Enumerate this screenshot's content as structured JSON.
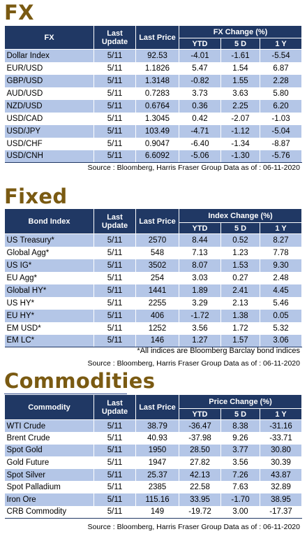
{
  "fx": {
    "title": "FX",
    "headers": {
      "name": "FX",
      "last_update": "Last Update",
      "last_price": "Last Price",
      "group": "FX Change (%)",
      "ytd": "YTD",
      "d5": "5 D",
      "y1": "1 Y"
    },
    "rows": [
      {
        "name": "Dollar Index",
        "update": "5/11",
        "price": "92.53",
        "ytd": "-4.01",
        "d5": "-1.61",
        "y1": "-5.54"
      },
      {
        "name": "EUR/USD",
        "update": "5/11",
        "price": "1.1826",
        "ytd": "5.47",
        "d5": "1.54",
        "y1": "6.87"
      },
      {
        "name": "GBP/USD",
        "update": "5/11",
        "price": "1.3148",
        "ytd": "-0.82",
        "d5": "1.55",
        "y1": "2.28"
      },
      {
        "name": "AUD/USD",
        "update": "5/11",
        "price": "0.7283",
        "ytd": "3.73",
        "d5": "3.63",
        "y1": "5.80"
      },
      {
        "name": "NZD/USD",
        "update": "5/11",
        "price": "0.6764",
        "ytd": "0.36",
        "d5": "2.25",
        "y1": "6.20"
      },
      {
        "name": "USD/CAD",
        "update": "5/11",
        "price": "1.3045",
        "ytd": "0.42",
        "d5": "-2.07",
        "y1": "-1.03"
      },
      {
        "name": "USD/JPY",
        "update": "5/11",
        "price": "103.49",
        "ytd": "-4.71",
        "d5": "-1.12",
        "y1": "-5.04"
      },
      {
        "name": "USD/CHF",
        "update": "5/11",
        "price": "0.9047",
        "ytd": "-6.40",
        "d5": "-1.34",
        "y1": "-8.87"
      },
      {
        "name": "USD/CNH",
        "update": "5/11",
        "price": "6.6092",
        "ytd": "-5.06",
        "d5": "-1.30",
        "y1": "-5.76"
      }
    ],
    "source": "Source : Bloomberg, Harris Fraser Group Data as of : 06-11-2020"
  },
  "fixed_income": {
    "title": "Fixed Income",
    "headers": {
      "name": "Bond Index",
      "last_update": "Last Update",
      "last_price": "Last Price",
      "group": "Index Change (%)",
      "ytd": "YTD",
      "d5": "5 D",
      "y1": "1 Y"
    },
    "rows": [
      {
        "name": "US Treasury*",
        "update": "5/11",
        "price": "2570",
        "ytd": "8.44",
        "d5": "0.52",
        "y1": "8.27"
      },
      {
        "name": "Global Agg*",
        "update": "5/11",
        "price": "548",
        "ytd": "7.13",
        "d5": "1.23",
        "y1": "7.78"
      },
      {
        "name": "US IG*",
        "update": "5/11",
        "price": "3502",
        "ytd": "8.07",
        "d5": "1.53",
        "y1": "9.30"
      },
      {
        "name": "EU Agg*",
        "update": "5/11",
        "price": "254",
        "ytd": "3.03",
        "d5": "0.27",
        "y1": "2.48"
      },
      {
        "name": "Global HY*",
        "update": "5/11",
        "price": "1441",
        "ytd": "1.89",
        "d5": "2.41",
        "y1": "4.45"
      },
      {
        "name": "US HY*",
        "update": "5/11",
        "price": "2255",
        "ytd": "3.29",
        "d5": "2.13",
        "y1": "5.46"
      },
      {
        "name": "EU HY*",
        "update": "5/11",
        "price": "406",
        "ytd": "-1.72",
        "d5": "1.38",
        "y1": "0.05"
      },
      {
        "name": "EM USD*",
        "update": "5/11",
        "price": "1252",
        "ytd": "3.56",
        "d5": "1.72",
        "y1": "5.32"
      },
      {
        "name": "EM LC*",
        "update": "5/11",
        "price": "146",
        "ytd": "1.27",
        "d5": "1.57",
        "y1": "3.06"
      }
    ],
    "note": "*All indices are Bloomberg Barclay bond indices",
    "source": "Source : Bloomberg, Harris Fraser Group Data as of : 06-11-2020"
  },
  "commodities": {
    "title": "Commodities",
    "headers": {
      "name": "Commodity",
      "last_update": "Last Update",
      "last_price": "Last Price",
      "group": "Price Change (%)",
      "ytd": "YTD",
      "d5": "5 D",
      "y1": "1 Y"
    },
    "rows": [
      {
        "name": "WTI Crude",
        "update": "5/11",
        "price": "38.79",
        "ytd": "-36.47",
        "d5": "8.38",
        "y1": "-31.16"
      },
      {
        "name": "Brent Crude",
        "update": "5/11",
        "price": "40.93",
        "ytd": "-37.98",
        "d5": "9.26",
        "y1": "-33.71"
      },
      {
        "name": "Spot Gold",
        "update": "5/11",
        "price": "1950",
        "ytd": "28.50",
        "d5": "3.77",
        "y1": "30.80"
      },
      {
        "name": "Gold Future",
        "update": "5/11",
        "price": "1947",
        "ytd": "27.82",
        "d5": "3.56",
        "y1": "30.39"
      },
      {
        "name": "Spot Silver",
        "update": "5/11",
        "price": "25.37",
        "ytd": "42.13",
        "d5": "7.26",
        "y1": "43.87"
      },
      {
        "name": "Spot Palladium",
        "update": "5/11",
        "price": "2385",
        "ytd": "22.58",
        "d5": "7.63",
        "y1": "32.89"
      },
      {
        "name": "Iron Ore",
        "update": "5/11",
        "price": "115.16",
        "ytd": "33.95",
        "d5": "-1.70",
        "y1": "38.95"
      },
      {
        "name": "CRB Commodity",
        "update": "5/11",
        "price": "149",
        "ytd": "-19.72",
        "d5": "3.00",
        "y1": "-17.37"
      }
    ],
    "source": "Source : Bloomberg, Harris Fraser Group Data as of : 06-11-2020"
  },
  "colors": {
    "header_bg": "#203864",
    "stripe": "#b4c6e7",
    "title": "#7a5a12",
    "title_underline": "#2f4a8a"
  }
}
